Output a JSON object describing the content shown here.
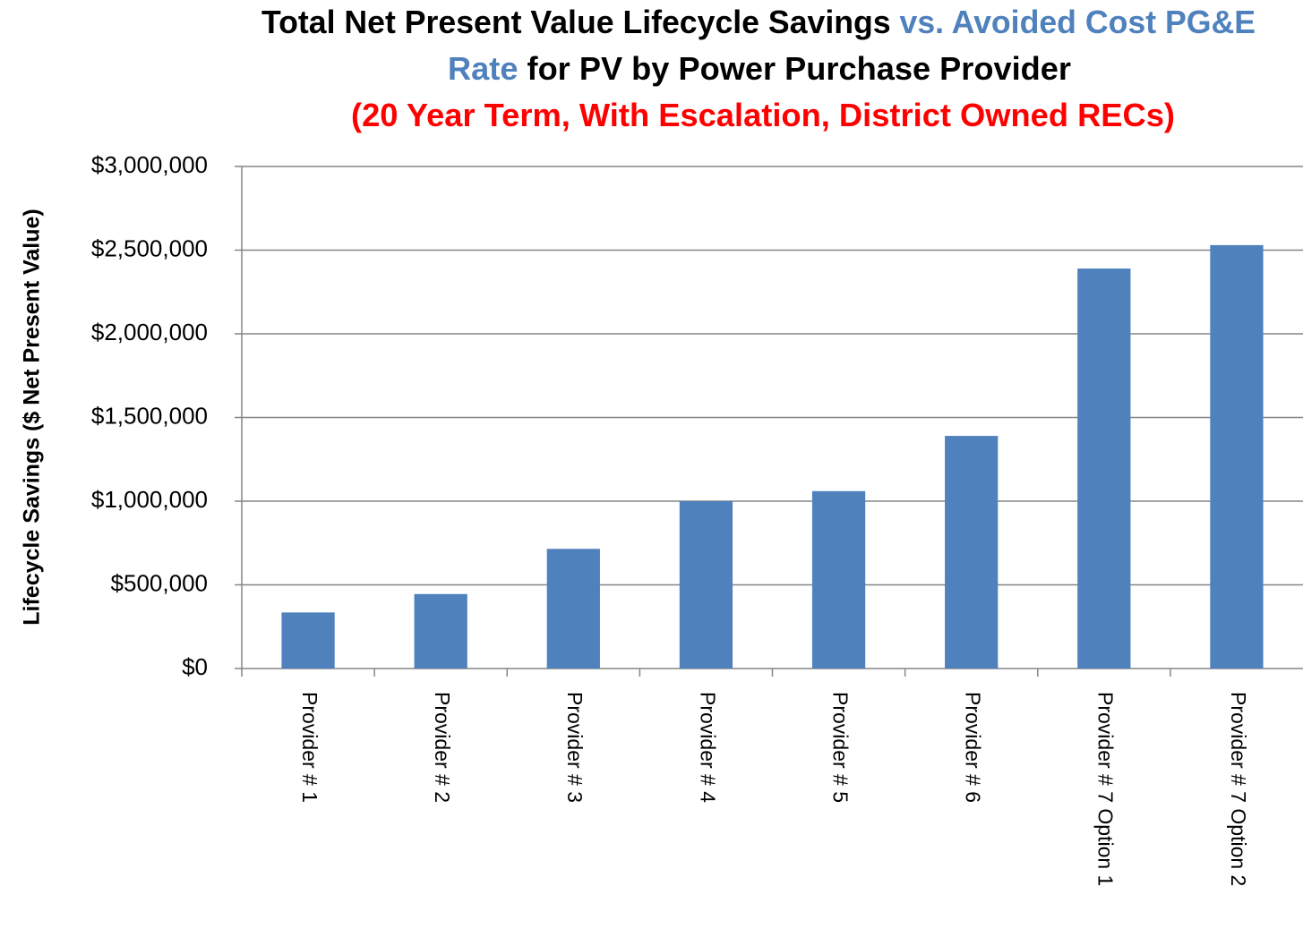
{
  "chart_data": {
    "type": "bar",
    "title_lines": [
      [
        {
          "text": "Total Net Present Value Lifecycle Savings",
          "color": "#000000"
        },
        {
          "text": "vs. Avoided Cost PG&E",
          "color": "#4f81bd"
        }
      ],
      [
        {
          "text": "Rate",
          "color": "#4f81bd"
        },
        {
          "text": "for PV by Power Purchase Provider",
          "color": "#000000"
        }
      ],
      [
        {
          "text": "(20 Year Term, With Escalation, District Owned RECs)",
          "color": "#ff0000"
        }
      ]
    ],
    "y_label": "Lifecycle Savings ($ Net Present Value)",
    "categories": [
      "Provider # 1",
      "Provider # 2",
      "Provider # 3",
      "Provider # 4",
      "Provider # 5",
      "Provider # 6",
      "Provider # 7 Option 1",
      "Provider # 7 Option 2"
    ],
    "values": [
      335000,
      445000,
      715000,
      1000000,
      1060000,
      1390000,
      2390000,
      2530000
    ],
    "color": "#4f81bd",
    "ylim": [
      0,
      3000000
    ],
    "yticks": [
      {
        "value": 0,
        "label": "$0"
      },
      {
        "value": 500000,
        "label": "$500,000"
      },
      {
        "value": 1000000,
        "label": "$1,000,000"
      },
      {
        "value": 1500000,
        "label": "$1,500,000"
      },
      {
        "value": 2000000,
        "label": "$2,000,000"
      },
      {
        "value": 2500000,
        "label": "$2,500,000"
      },
      {
        "value": 3000000,
        "label": "$3,000,000"
      }
    ],
    "grid": true
  }
}
